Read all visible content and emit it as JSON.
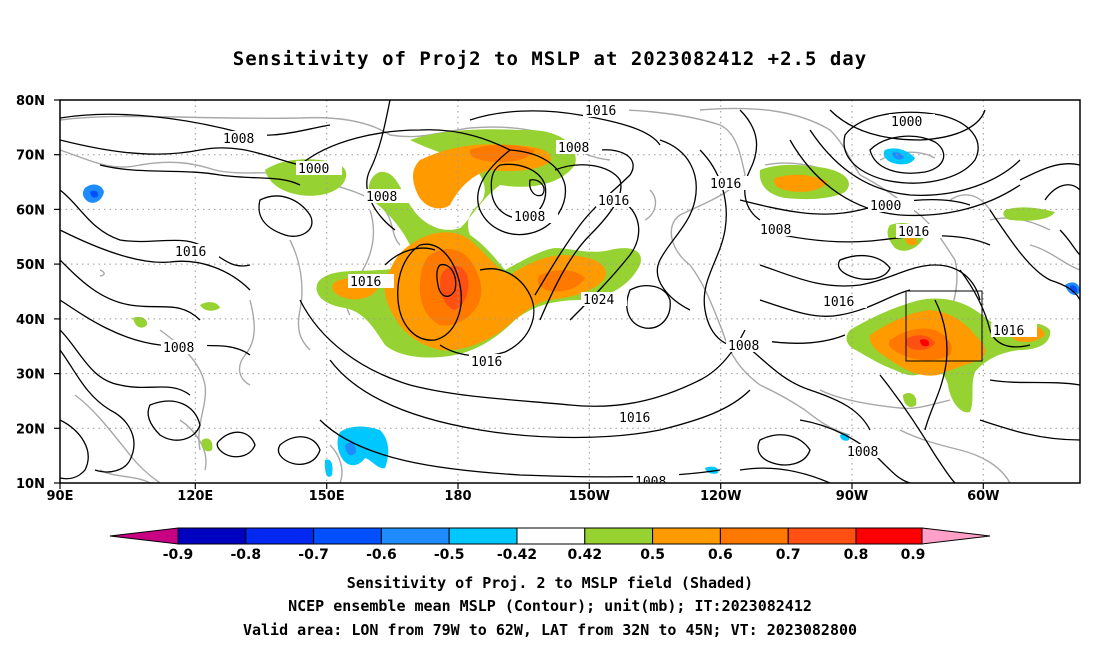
{
  "title": "Sensitivity of Proj2 to MSLP at 2023082412 +2.5 day",
  "map": {
    "lat_labels": [
      "80N",
      "70N",
      "60N",
      "50N",
      "40N",
      "30N",
      "20N",
      "10N"
    ],
    "lon_labels": [
      "90E",
      "120E",
      "150E",
      "180",
      "150W",
      "120W",
      "90W",
      "60W"
    ],
    "contour_labels": [
      "1016",
      "1008",
      "1000",
      "1016",
      "1008",
      "1008",
      "1008",
      "1000",
      "1016",
      "1000",
      "1008",
      "1016",
      "1016",
      "1024",
      "1016",
      "1016",
      "1016",
      "1008",
      "1016",
      "1016",
      "1016",
      "1008",
      "1008",
      "1008"
    ],
    "colors": {
      "neg_09": "#c80082",
      "neg_08": "#0000c0",
      "neg_07": "#0028f0",
      "neg_06": "#0050ff",
      "neg_05": "#1e8cff",
      "neg_042": "#00c8ff",
      "neutral": "#ffffff",
      "pos_042": "#96d232",
      "pos_05": "#ff9b00",
      "pos_06": "#ff7800",
      "pos_07": "#ff5014",
      "pos_08": "#ff0000",
      "pos_09": "#ffa0c8"
    }
  },
  "colorbar": {
    "labels": [
      "-0.9",
      "-0.8",
      "-0.7",
      "-0.6",
      "-0.5",
      "-0.42",
      "0.42",
      "0.5",
      "0.6",
      "0.7",
      "0.8",
      "0.9"
    ]
  },
  "captions": {
    "line1": "Sensitivity of Proj. 2 to MSLP field (Shaded)",
    "line2": "NCEP ensemble mean MSLP (Contour); unit(mb); IT:2023082412",
    "line3": "Valid area: LON from 79W to 62W, LAT from 32N to 45N; VT: 2023082800"
  }
}
